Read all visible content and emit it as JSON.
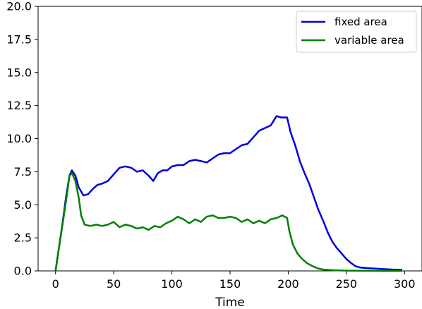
{
  "chart_data": {
    "type": "line",
    "title": "",
    "xlabel": "Time",
    "ylabel": "",
    "xlim": [
      -15,
      315
    ],
    "ylim": [
      0,
      20
    ],
    "xticks": [
      0,
      50,
      100,
      150,
      200,
      250,
      300
    ],
    "xtick_labels": [
      "0",
      "50",
      "100",
      "150",
      "200",
      "250",
      "300"
    ],
    "yticks": [
      0,
      2.5,
      5,
      7.5,
      10,
      12.5,
      15,
      17.5,
      20
    ],
    "ytick_labels": [
      "0.0",
      "2.5",
      "5.0",
      "7.5",
      "10.0",
      "12.5",
      "15.0",
      "17.5",
      "20.0"
    ],
    "grid": false,
    "legend_position": "top-right",
    "series": [
      {
        "name": "fixed area",
        "color": "#0000dd",
        "points": [
          [
            0,
            0
          ],
          [
            3,
            1.8
          ],
          [
            6,
            3.6
          ],
          [
            9,
            5.6
          ],
          [
            12,
            7.2
          ],
          [
            14,
            7.6
          ],
          [
            17,
            7.2
          ],
          [
            20,
            6.3
          ],
          [
            24,
            5.7
          ],
          [
            28,
            5.8
          ],
          [
            32,
            6.2
          ],
          [
            36,
            6.5
          ],
          [
            40,
            6.6
          ],
          [
            45,
            6.8
          ],
          [
            50,
            7.3
          ],
          [
            55,
            7.8
          ],
          [
            60,
            7.9
          ],
          [
            65,
            7.8
          ],
          [
            70,
            7.5
          ],
          [
            75,
            7.6
          ],
          [
            80,
            7.2
          ],
          [
            84,
            6.8
          ],
          [
            88,
            7.4
          ],
          [
            92,
            7.6
          ],
          [
            96,
            7.6
          ],
          [
            100,
            7.9
          ],
          [
            105,
            8.0
          ],
          [
            110,
            8.0
          ],
          [
            115,
            8.3
          ],
          [
            120,
            8.4
          ],
          [
            125,
            8.3
          ],
          [
            130,
            8.2
          ],
          [
            135,
            8.5
          ],
          [
            140,
            8.8
          ],
          [
            145,
            8.9
          ],
          [
            150,
            8.9
          ],
          [
            155,
            9.2
          ],
          [
            160,
            9.5
          ],
          [
            165,
            9.6
          ],
          [
            170,
            10.1
          ],
          [
            175,
            10.6
          ],
          [
            180,
            10.8
          ],
          [
            185,
            11.0
          ],
          [
            190,
            11.7
          ],
          [
            194,
            11.6
          ],
          [
            199,
            11.6
          ],
          [
            202,
            10.5
          ],
          [
            206,
            9.5
          ],
          [
            210,
            8.3
          ],
          [
            214,
            7.4
          ],
          [
            218,
            6.6
          ],
          [
            222,
            5.6
          ],
          [
            226,
            4.6
          ],
          [
            230,
            3.8
          ],
          [
            234,
            2.9
          ],
          [
            238,
            2.2
          ],
          [
            242,
            1.7
          ],
          [
            246,
            1.3
          ],
          [
            250,
            0.9
          ],
          [
            254,
            0.6
          ],
          [
            258,
            0.35
          ],
          [
            262,
            0.25
          ],
          [
            270,
            0.2
          ],
          [
            280,
            0.15
          ],
          [
            290,
            0.1
          ],
          [
            298,
            0.08
          ]
        ]
      },
      {
        "name": "variable area",
        "color": "#008000",
        "points": [
          [
            0,
            0
          ],
          [
            3,
            1.8
          ],
          [
            6,
            3.5
          ],
          [
            9,
            5.3
          ],
          [
            12,
            7.2
          ],
          [
            14,
            7.4
          ],
          [
            17,
            6.8
          ],
          [
            20,
            5.5
          ],
          [
            22,
            4.2
          ],
          [
            25,
            3.5
          ],
          [
            30,
            3.4
          ],
          [
            35,
            3.5
          ],
          [
            40,
            3.4
          ],
          [
            45,
            3.5
          ],
          [
            50,
            3.7
          ],
          [
            55,
            3.3
          ],
          [
            60,
            3.5
          ],
          [
            65,
            3.4
          ],
          [
            70,
            3.2
          ],
          [
            75,
            3.3
          ],
          [
            80,
            3.1
          ],
          [
            85,
            3.4
          ],
          [
            90,
            3.3
          ],
          [
            95,
            3.6
          ],
          [
            100,
            3.8
          ],
          [
            105,
            4.1
          ],
          [
            110,
            3.9
          ],
          [
            115,
            3.6
          ],
          [
            120,
            3.9
          ],
          [
            125,
            3.7
          ],
          [
            130,
            4.1
          ],
          [
            135,
            4.2
          ],
          [
            140,
            4.0
          ],
          [
            145,
            4.0
          ],
          [
            150,
            4.1
          ],
          [
            155,
            4.0
          ],
          [
            160,
            3.7
          ],
          [
            165,
            3.9
          ],
          [
            170,
            3.6
          ],
          [
            175,
            3.8
          ],
          [
            180,
            3.6
          ],
          [
            185,
            3.9
          ],
          [
            190,
            4.0
          ],
          [
            195,
            4.2
          ],
          [
            199,
            4.0
          ],
          [
            201,
            3.0
          ],
          [
            204,
            2.0
          ],
          [
            208,
            1.3
          ],
          [
            212,
            0.9
          ],
          [
            216,
            0.6
          ],
          [
            220,
            0.4
          ],
          [
            225,
            0.2
          ],
          [
            230,
            0.1
          ],
          [
            240,
            0.05
          ],
          [
            250,
            0.02
          ],
          [
            260,
            0.01
          ],
          [
            280,
            0.0
          ],
          [
            298,
            0.0
          ]
        ]
      }
    ]
  }
}
